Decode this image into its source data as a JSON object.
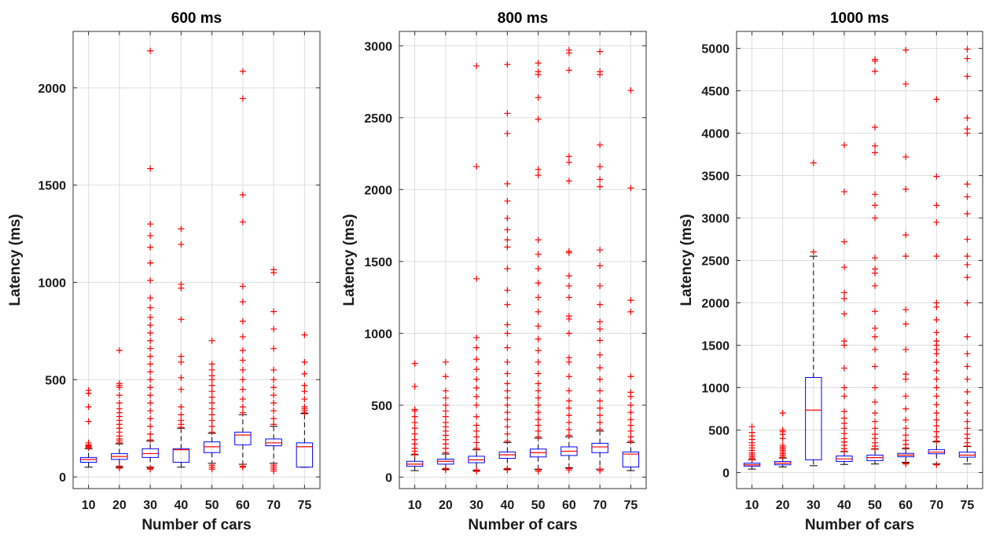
{
  "figure": {
    "chart_data": [
      {
        "type": "box",
        "title": "600 ms",
        "xlabel": "Number of cars",
        "ylabel": "Latency (ms)",
        "categories": [
          "10",
          "20",
          "30",
          "40",
          "50",
          "60",
          "70",
          "75"
        ],
        "ylim": [
          -60,
          2290
        ],
        "yticks": [
          0,
          500,
          1000,
          1500,
          2000
        ],
        "grid": true,
        "colors": {
          "box": "#0000ff",
          "median": "#ff0000",
          "outlier": "#ff0000",
          "whisker": "#000000"
        },
        "boxes": [
          {
            "q1": 75,
            "median": 90,
            "q3": 100,
            "whisker_low": 50,
            "whisker_high": 145,
            "outliers": [
              150,
              155,
              160,
              165,
              175,
              285,
              360,
              430,
              445
            ]
          },
          {
            "q1": 90,
            "median": 105,
            "q3": 120,
            "whisker_low": 50,
            "whisker_high": 170,
            "outliers": [
              45,
              55,
              175,
              185,
              195,
              210,
              230,
              250,
              270,
              290,
              310,
              330,
              350,
              380,
              420,
              460,
              470,
              480,
              650
            ]
          },
          {
            "q1": 100,
            "median": 120,
            "q3": 145,
            "whisker_low": 50,
            "whisker_high": 185,
            "outliers": [
              40,
              45,
              190,
              220,
              260,
              300,
              340,
              380,
              420,
              460,
              500,
              540,
              580,
              620,
              660,
              700,
              740,
              780,
              820,
              870,
              920,
              1010,
              1100,
              1180,
              1240,
              1300,
              1585,
              2190
            ]
          },
          {
            "q1": 75,
            "median": 140,
            "q3": 145,
            "whisker_low": 50,
            "whisker_high": 250,
            "outliers": [
              255,
              270,
              290,
              320,
              360,
              450,
              510,
              590,
              620,
              810,
              970,
              990,
              1195,
              1275
            ]
          },
          {
            "q1": 125,
            "median": 155,
            "q3": 180,
            "whisker_low": 70,
            "whisker_high": 225,
            "outliers": [
              40,
              50,
              60,
              230,
              260,
              290,
              320,
              350,
              380,
              410,
              440,
              470,
              500,
              520,
              550,
              580,
              700
            ]
          },
          {
            "q1": 165,
            "median": 215,
            "q3": 230,
            "whisker_low": 65,
            "whisker_high": 320,
            "outliers": [
              50,
              55,
              330,
              360,
              400,
              450,
              500,
              550,
              600,
              650,
              720,
              800,
              900,
              980,
              1310,
              1450,
              1945,
              2085
            ]
          },
          {
            "q1": 160,
            "median": 175,
            "q3": 195,
            "whisker_low": 70,
            "whisker_high": 260,
            "outliers": [
              30,
              40,
              50,
              60,
              270,
              300,
              340,
              380,
              420,
              460,
              500,
              550,
              660,
              760,
              850,
              1050,
              1065
            ]
          },
          {
            "q1": 50,
            "median": 155,
            "q3": 175,
            "whisker_low": 50,
            "whisker_high": 325,
            "outliers": [
              330,
              340,
              350,
              360,
              400,
              440,
              470,
              530,
              590,
              730
            ]
          }
        ]
      },
      {
        "type": "box",
        "title": "800 ms",
        "xlabel": "Number of cars",
        "ylabel": "Latency (ms)",
        "categories": [
          "10",
          "20",
          "30",
          "40",
          "50",
          "60",
          "70",
          "75"
        ],
        "ylim": [
          -80,
          3100
        ],
        "yticks": [
          0,
          500,
          1000,
          1500,
          2000,
          2500,
          3000
        ],
        "grid": true,
        "colors": {
          "box": "#0000ff",
          "median": "#ff0000",
          "outlier": "#ff0000",
          "whisker": "#000000"
        },
        "boxes": [
          {
            "q1": 75,
            "median": 90,
            "q3": 110,
            "whisker_low": 45,
            "whisker_high": 155,
            "outliers": [
              160,
              180,
              200,
              230,
              260,
              300,
              340,
              380,
              420,
              460,
              470,
              630,
              790
            ]
          },
          {
            "q1": 90,
            "median": 110,
            "q3": 125,
            "whisker_low": 55,
            "whisker_high": 160,
            "outliers": [
              50,
              60,
              170,
              200,
              230,
              260,
              290,
              320,
              350,
              380,
              420,
              460,
              500,
              550,
              600,
              700,
              800
            ]
          },
          {
            "q1": 100,
            "median": 120,
            "q3": 145,
            "whisker_low": 45,
            "whisker_high": 190,
            "outliers": [
              40,
              50,
              200,
              240,
              280,
              320,
              360,
              420,
              500,
              560,
              620,
              680,
              750,
              820,
              900,
              970,
              1380,
              2160,
              2860
            ]
          },
          {
            "q1": 130,
            "median": 155,
            "q3": 175,
            "whisker_low": 55,
            "whisker_high": 240,
            "outliers": [
              50,
              60,
              250,
              300,
              350,
              400,
              450,
              500,
              550,
              600,
              650,
              720,
              800,
              900,
              1000,
              1060,
              1200,
              1300,
              1450,
              1600,
              1650,
              1720,
              1800,
              1920,
              2040,
              2390,
              2530,
              2870
            ]
          },
          {
            "q1": 140,
            "median": 170,
            "q3": 195,
            "whisker_low": 55,
            "whisker_high": 270,
            "outliers": [
              40,
              50,
              280,
              320,
              360,
              400,
              450,
              500,
              550,
              600,
              650,
              720,
              800,
              880,
              960,
              1050,
              1150,
              1250,
              1350,
              1450,
              1550,
              1650,
              2100,
              2140,
              2490,
              2640,
              2800,
              2820,
              2880
            ]
          },
          {
            "q1": 150,
            "median": 180,
            "q3": 210,
            "whisker_low": 65,
            "whisker_high": 280,
            "outliers": [
              50,
              60,
              290,
              330,
              380,
              430,
              480,
              530,
              600,
              700,
              800,
              830,
              1000,
              1100,
              1120,
              1250,
              1330,
              1400,
              1560,
              1570,
              2060,
              2190,
              2230,
              2830,
              2950,
              2970
            ]
          },
          {
            "q1": 170,
            "median": 210,
            "q3": 235,
            "whisker_low": 55,
            "whisker_high": 320,
            "outliers": [
              45,
              55,
              330,
              380,
              430,
              480,
              530,
              600,
              680,
              760,
              850,
              950,
              1030,
              1080,
              1200,
              1330,
              1470,
              1580,
              2020,
              2070,
              2160,
              2310,
              2800,
              2820,
              2960
            ]
          },
          {
            "q1": 70,
            "median": 160,
            "q3": 175,
            "whisker_low": 45,
            "whisker_high": 240,
            "outliers": [
              250,
              280,
              320,
              360,
              400,
              450,
              500,
              560,
              590,
              700,
              1150,
              1230,
              2010,
              2690
            ]
          }
        ]
      },
      {
        "type": "box",
        "title": "1000 ms",
        "xlabel": "Number of cars",
        "ylabel": "Latency (ms)",
        "categories": [
          "10",
          "20",
          "30",
          "40",
          "50",
          "60",
          "70",
          "75"
        ],
        "ylim": [
          -190,
          5200
        ],
        "yticks": [
          0,
          500,
          1000,
          1500,
          2000,
          2500,
          3000,
          3500,
          4000,
          4500,
          5000
        ],
        "grid": true,
        "colors": {
          "box": "#0000ff",
          "median": "#ff0000",
          "outlier": "#ff0000",
          "whisker": "#000000"
        },
        "boxes": [
          {
            "q1": 75,
            "median": 90,
            "q3": 110,
            "whisker_low": 40,
            "whisker_high": 150,
            "outliers": [
              155,
              170,
              190,
              210,
              230,
              260,
              290,
              320,
              350,
              390,
              430,
              470,
              540
            ]
          },
          {
            "q1": 90,
            "median": 110,
            "q3": 130,
            "whisker_low": 65,
            "whisker_high": 170,
            "outliers": [
              180,
              200,
              220,
              240,
              260,
              280,
              300,
              320,
              400,
              450,
              480,
              500,
              700
            ]
          },
          {
            "q1": 150,
            "median": 735,
            "q3": 1120,
            "whisker_low": 80,
            "whisker_high": 2550,
            "outliers": [
              2600,
              3650
            ]
          },
          {
            "q1": 130,
            "median": 160,
            "q3": 195,
            "whisker_low": 95,
            "whisker_high": 245,
            "outliers": [
              250,
              280,
              320,
              360,
              400,
              460,
              520,
              580,
              640,
              720,
              900,
              1000,
              1230,
              1500,
              1550,
              1870,
              2050,
              2120,
              2420,
              2720,
              3310,
              3860
            ]
          },
          {
            "q1": 140,
            "median": 175,
            "q3": 205,
            "whisker_low": 100,
            "whisker_high": 275,
            "outliers": [
              280,
              310,
              350,
              400,
              450,
              520,
              600,
              700,
              830,
              1000,
              1250,
              1450,
              1600,
              1700,
              1900,
              2200,
              2350,
              2400,
              2530,
              3000,
              3150,
              3280,
              3770,
              3850,
              4070,
              4730,
              4850,
              4870
            ]
          },
          {
            "q1": 185,
            "median": 205,
            "q3": 225,
            "whisker_low": 120,
            "whisker_high": 280,
            "outliers": [
              100,
              110,
              290,
              330,
              380,
              440,
              520,
              620,
              750,
              900,
              1100,
              1160,
              1450,
              1750,
              1920,
              2550,
              2800,
              3340,
              3720,
              4580,
              4980
            ]
          },
          {
            "q1": 220,
            "median": 240,
            "q3": 270,
            "whisker_low": 100,
            "whisker_high": 360,
            "outliers": [
              90,
              370,
              420,
              480,
              550,
              620,
              700,
              800,
              900,
              1000,
              1100,
              1200,
              1300,
              1400,
              1450,
              1500,
              1550,
              1650,
              1800,
              1950,
              2000,
              2550,
              2950,
              3150,
              3490,
              4400
            ]
          },
          {
            "q1": 180,
            "median": 205,
            "q3": 240,
            "whisker_low": 100,
            "whisker_high": 305,
            "outliers": [
              310,
              350,
              400,
              450,
              520,
              600,
              700,
              820,
              950,
              1100,
              1250,
              1400,
              1600,
              2000,
              2300,
              2450,
              2550,
              2750,
              3050,
              3250,
              3400,
              4000,
              4050,
              4180,
              4670,
              4880,
              4990
            ]
          }
        ]
      }
    ]
  }
}
